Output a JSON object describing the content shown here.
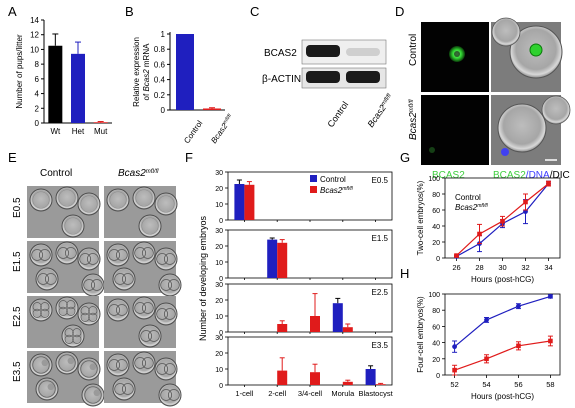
{
  "panel_letters": [
    "A",
    "B",
    "C",
    "D",
    "E",
    "F",
    "G",
    "H"
  ],
  "labels": {
    "control": "Control",
    "mutant_prefix": "Bcas2",
    "mutant_sup": "mfl/fl",
    "bcas2": "BCAS2",
    "actin": "β-ACTIN",
    "d_merge_bcas2": "BCAS2",
    "d_merge_dna": "/DNA",
    "d_merge_dic": "/DIC"
  },
  "colors": {
    "black": "#000000",
    "blue": "#1f1fbf",
    "red": "#e01b1b",
    "green": "#3fcf3f",
    "dapi": "#3b3bff"
  },
  "chart_data": [
    {
      "panel": "A",
      "type": "bar",
      "ylabel": "Number of pups/litter",
      "categories": [
        "Wt",
        "Het",
        "Mut"
      ],
      "values": [
        10.5,
        9.4,
        0.1
      ],
      "errors": [
        1.6,
        1.6,
        0.1
      ],
      "bar_colors": [
        "#000000",
        "#1f1fbf",
        "#e01b1b"
      ],
      "ylim": [
        0,
        14
      ],
      "yticks": [
        0,
        2,
        4,
        6,
        8,
        10,
        12,
        14
      ]
    },
    {
      "panel": "B",
      "type": "bar",
      "ylabel_pre": "Relative expression",
      "ylabel_post": "of ",
      "ylabel_gene": "Bcas2",
      "ylabel_suffix": " mRNA",
      "categories": [
        "Control",
        "Bcas2 mfl/fl"
      ],
      "values": [
        1.0,
        0.02
      ],
      "errors": [
        0,
        0.01
      ],
      "bar_colors": [
        "#1f1fbf",
        "#e01b1b"
      ],
      "ylim": [
        0,
        1.0
      ],
      "yticks": [
        0,
        0.2,
        0.4,
        0.6,
        0.8,
        1.0
      ],
      "yticklabels": [
        "0",
        "0.2",
        "0.4",
        "0.6",
        "0.8",
        "1"
      ]
    },
    {
      "panel": "F",
      "type": "bar",
      "ylabel": "Number of developing embryos",
      "categories": [
        "1-cell",
        "2-cell",
        "3/4-cell",
        "Morula",
        "Blastocyst"
      ],
      "legend": [
        "Control",
        "Bcas2 mfl/fl"
      ],
      "ylim": [
        0,
        30
      ],
      "yticks": [
        0,
        10,
        20,
        30
      ],
      "subplots": [
        {
          "stage": "E0.5",
          "control": [
            22.5,
            null,
            null,
            null,
            null
          ],
          "control_err": [
            2.5,
            null,
            null,
            null,
            null
          ],
          "mutant": [
            22,
            null,
            null,
            null,
            null
          ],
          "mutant_err": [
            2,
            null,
            null,
            null,
            null
          ]
        },
        {
          "stage": "E1.5",
          "control": [
            null,
            24,
            null,
            null,
            null
          ],
          "control_err": [
            null,
            1,
            null,
            null,
            null
          ],
          "mutant": [
            null,
            22,
            null,
            null,
            null
          ],
          "mutant_err": [
            null,
            2,
            null,
            null,
            null
          ]
        },
        {
          "stage": "E2.5",
          "control": [
            null,
            null,
            null,
            18,
            null
          ],
          "control_err": [
            null,
            null,
            null,
            3,
            null
          ],
          "mutant": [
            null,
            5,
            10,
            3,
            null
          ],
          "mutant_err": [
            null,
            2,
            14,
            2,
            null
          ]
        },
        {
          "stage": "E3.5",
          "control": [
            null,
            null,
            null,
            null,
            10
          ],
          "control_err": [
            null,
            null,
            null,
            null,
            2
          ],
          "mutant": [
            null,
            9,
            8,
            2,
            0.5
          ],
          "mutant_err": [
            null,
            8,
            5,
            1,
            0.5
          ]
        }
      ]
    },
    {
      "panel": "G",
      "type": "line",
      "xlabel": "Hours (post-hCG)",
      "ylabel": "Two-cell embryos(%)",
      "x": [
        26,
        28,
        30,
        32,
        34
      ],
      "ylim": [
        0,
        100
      ],
      "yticks": [
        0,
        20,
        40,
        60,
        80,
        100
      ],
      "legend": [
        "Control",
        "Bcas2 mfl/fl"
      ],
      "series": [
        {
          "name": "Control",
          "color": "#1f1fbf",
          "values": [
            2,
            18,
            43,
            58,
            93
          ],
          "errors": [
            1,
            10,
            5,
            15,
            3
          ]
        },
        {
          "name": "Bcas2 mfl/fl",
          "color": "#e01b1b",
          "values": [
            3,
            30,
            46,
            70,
            93
          ],
          "errors": [
            1,
            12,
            6,
            10,
            3
          ]
        }
      ]
    },
    {
      "panel": "H",
      "type": "line",
      "xlabel": "Hours (post-hCG)",
      "ylabel": "Four-cell embryos(%)",
      "x": [
        52,
        54,
        56,
        58
      ],
      "ylim": [
        0,
        100
      ],
      "yticks": [
        0,
        20,
        40,
        60,
        80,
        100
      ],
      "series": [
        {
          "name": "Control",
          "color": "#1f1fbf",
          "values": [
            35,
            68,
            85,
            97
          ],
          "errors": [
            7,
            3,
            3,
            2
          ]
        },
        {
          "name": "Bcas2 mfl/fl",
          "color": "#e01b1b",
          "values": [
            6,
            20,
            36,
            42
          ],
          "errors": [
            6,
            5,
            5,
            6
          ]
        }
      ]
    }
  ],
  "panel_e": {
    "col_control": "Control",
    "stages": [
      "E0.5",
      "E1.5",
      "E2.5",
      "E3.5"
    ]
  },
  "panel_d": {
    "row_control": "Control"
  }
}
